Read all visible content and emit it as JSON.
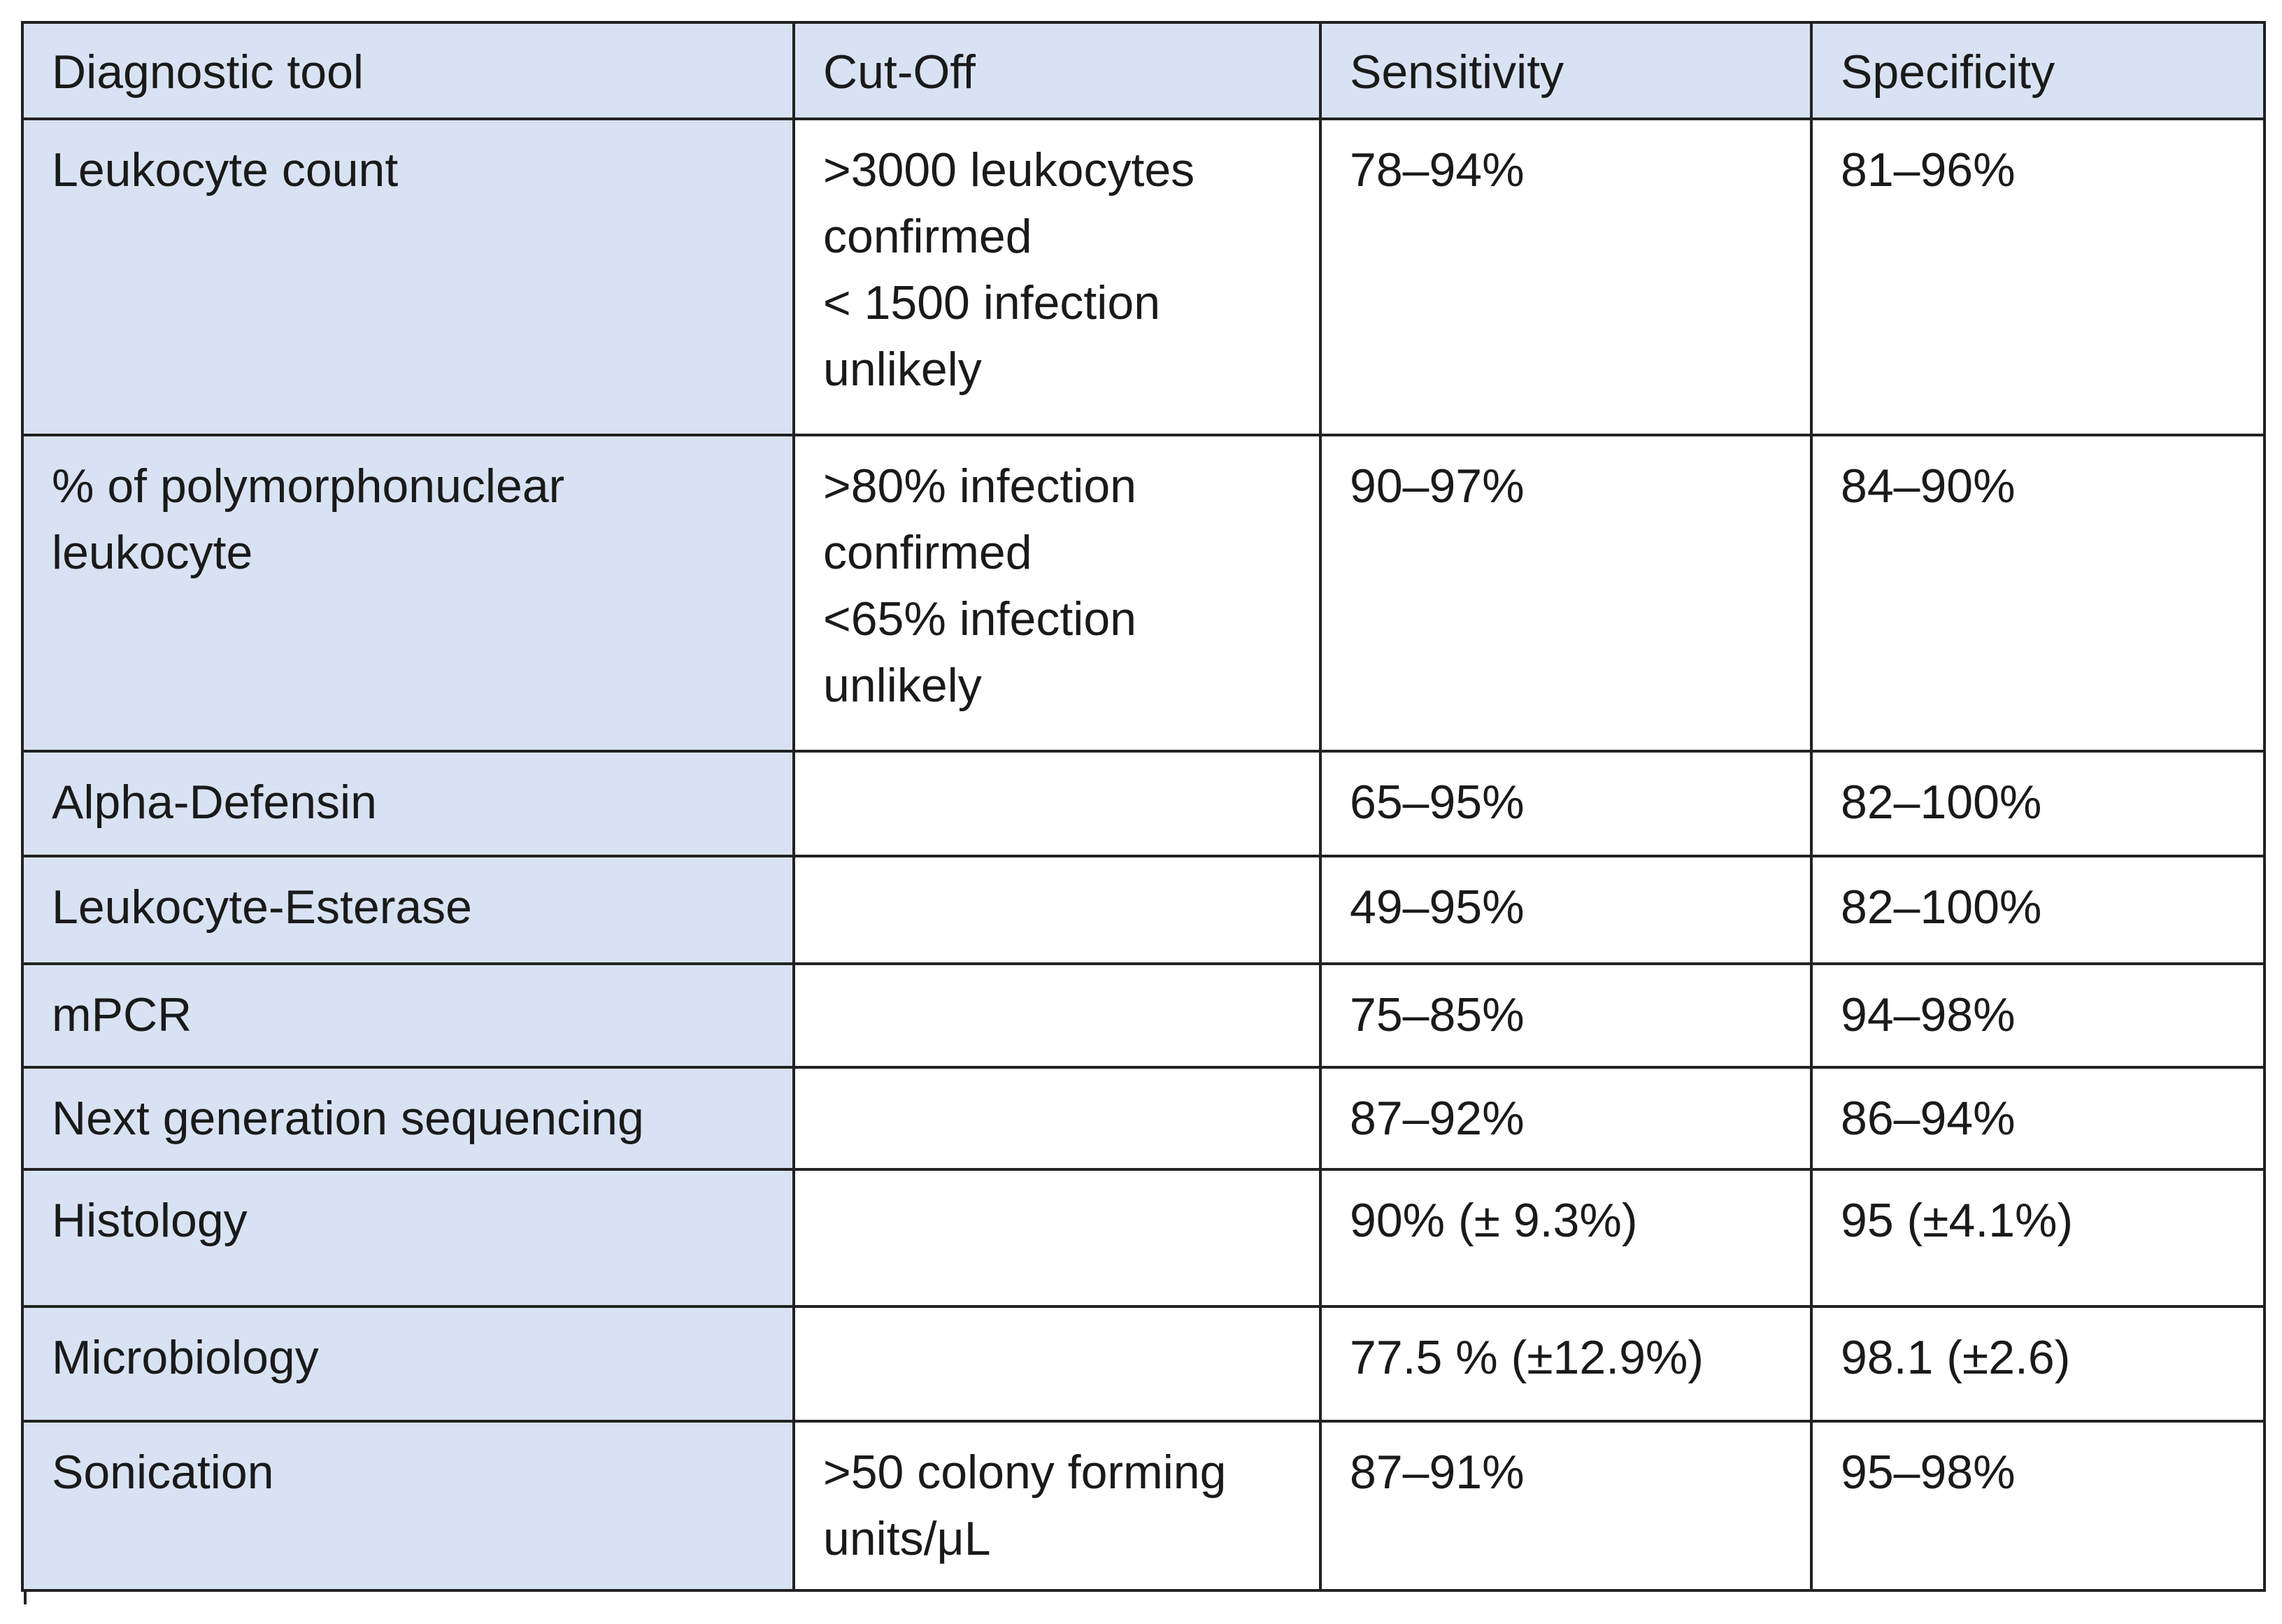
{
  "table": {
    "headers": [
      "Diagnostic tool",
      "Cut-Off",
      "Sensitivity",
      "Specificity"
    ],
    "rows": [
      {
        "tool": "Leukocyte count",
        "cutoff": ">3000 leukocytes\nconfirmed\n< 1500 infection\nunlikely",
        "sensitivity": "78–94%",
        "specificity": "81–96%"
      },
      {
        "tool": "% of polymorphonuclear\nleukocyte",
        "cutoff": ">80% infection\nconfirmed\n<65% infection\nunlikely",
        "sensitivity": "90–97%",
        "specificity": "84–90%"
      },
      {
        "tool": "Alpha-Defensin",
        "cutoff": "",
        "sensitivity": "65–95%",
        "specificity": "82–100%"
      },
      {
        "tool": "Leukocyte-Esterase",
        "cutoff": "",
        "sensitivity": "49–95%",
        "specificity": "82–100%"
      },
      {
        "tool": "mPCR",
        "cutoff": "",
        "sensitivity": "75–85%",
        "specificity": "94–98%"
      },
      {
        "tool": "Next generation sequencing",
        "cutoff": "",
        "sensitivity": "87–92%",
        "specificity": "86–94%"
      },
      {
        "tool": "Histology",
        "cutoff": "",
        "sensitivity": "90% (± 9.3%)",
        "specificity": "95 (±4.1%)"
      },
      {
        "tool": "Microbiology",
        "cutoff": "",
        "sensitivity": "77.5 % (±12.9%)",
        "specificity": "98.1 (±2.6)"
      },
      {
        "tool": "Sonication",
        "cutoff": ">50 colony forming\nunits/μL",
        "sensitivity": "87–91%",
        "specificity": "95–98%"
      }
    ]
  },
  "colors": {
    "header_bg": "#d9e2f3",
    "first_column_bg": "#d9e2f3",
    "border": "#222222"
  }
}
